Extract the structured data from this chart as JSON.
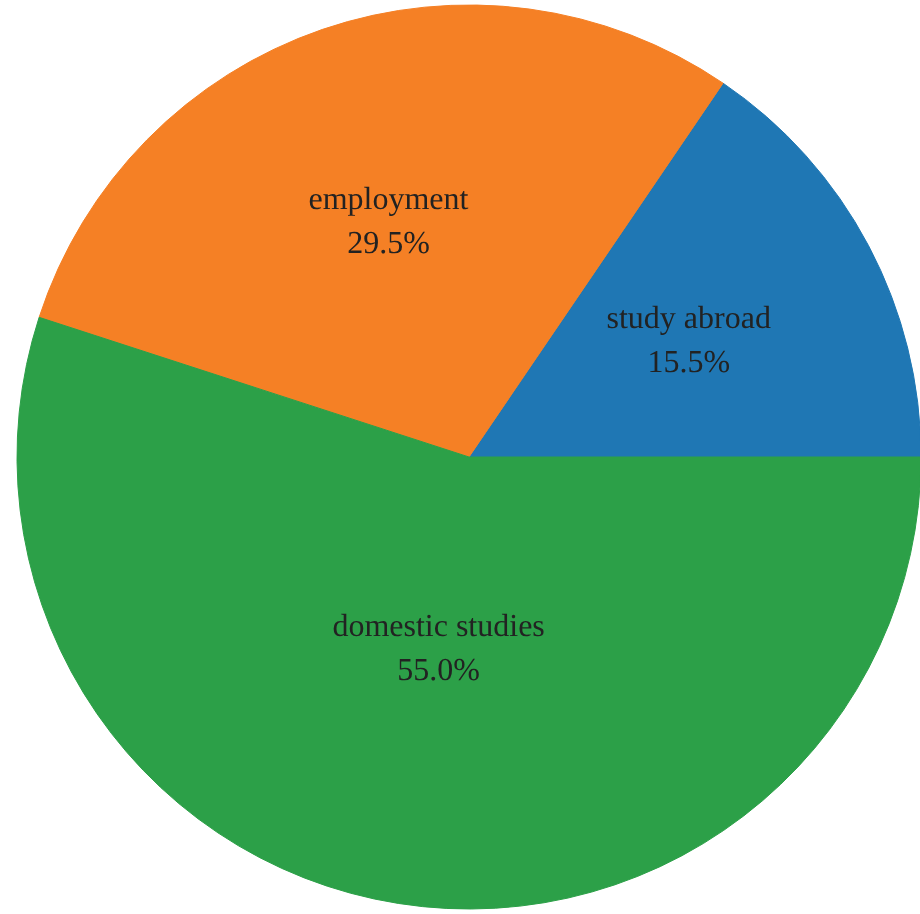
{
  "chart_data": {
    "type": "pie",
    "categories": [
      "study abroad",
      "employment",
      "domestic studies"
    ],
    "values": [
      15.5,
      29.5,
      55.0
    ],
    "value_labels": [
      "15.5%",
      "29.5%",
      "55.0%"
    ],
    "colors": [
      "#1f77b4",
      "#f58025",
      "#2ca048"
    ]
  }
}
